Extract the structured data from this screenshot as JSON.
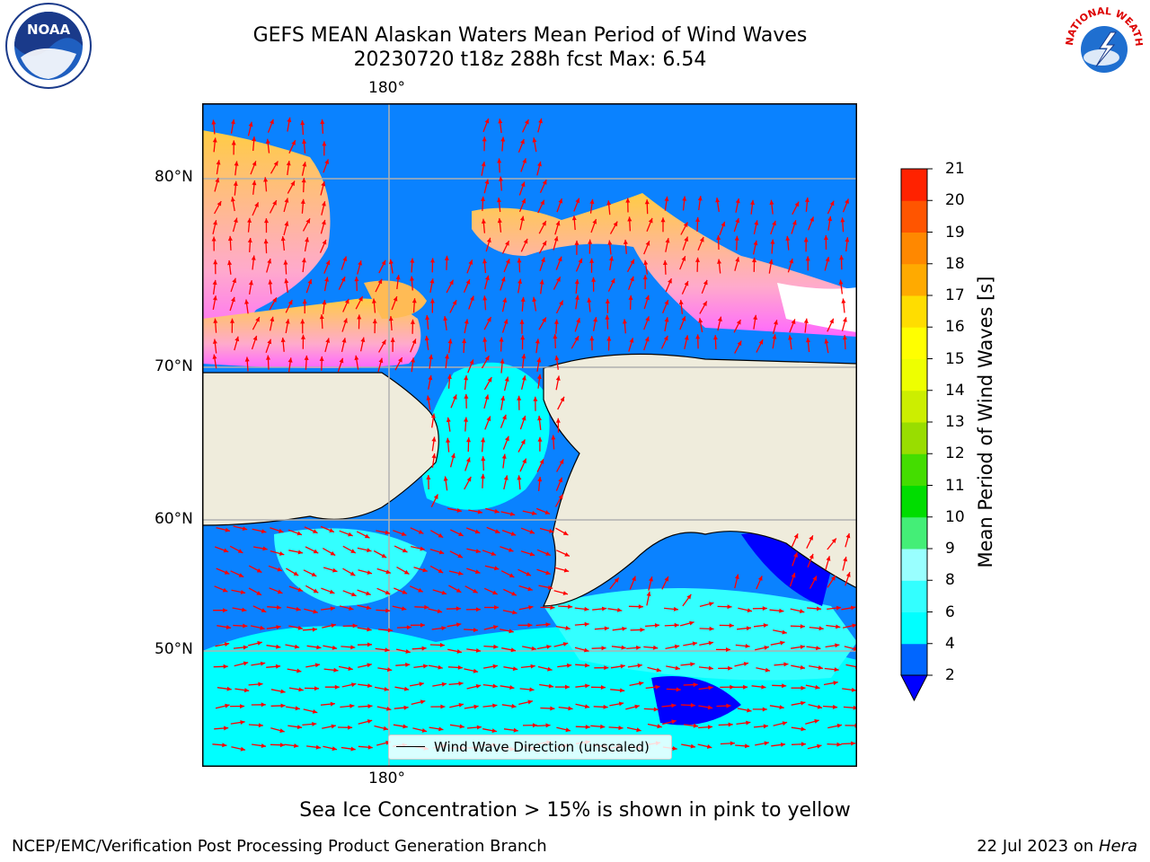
{
  "title": {
    "line1": "GEFS MEAN Alaskan Waters Mean Period of Wind Waves",
    "line2": "20230720 t18z 288h fcst   Max: 6.54"
  },
  "logos": {
    "left": {
      "text": "NOAA",
      "icon": "noaa-logo-icon"
    },
    "right": {
      "text": "NATIONAL WEATHER SERVICE",
      "icon": "nws-logo-icon"
    }
  },
  "map": {
    "top_lon_label": "180°",
    "bottom_lon_label": "180°",
    "lat_labels": [
      "80°N",
      "70°N",
      "60°N",
      "50°N"
    ],
    "land_color": "#efecdc",
    "arrow_color": "#ff0000",
    "legend_label": "Wind Wave Direction (unscaled)"
  },
  "colorbar": {
    "label": "Mean Period of Wind Waves [s]",
    "ticks": [
      "2",
      "4",
      "6",
      "8",
      "9",
      "10",
      "11",
      "12",
      "13",
      "14",
      "15",
      "16",
      "17",
      "18",
      "19",
      "20",
      "21"
    ],
    "colors": [
      "#0066ff",
      "#00ffff",
      "#33ffff",
      "#99ffff",
      "#44ee77",
      "#00dd00",
      "#44dd00",
      "#99dd00",
      "#ccee00",
      "#eeff00",
      "#ffff00",
      "#ffdd00",
      "#ffaa00",
      "#ff8800",
      "#ff5500",
      "#ff2200",
      "#ff0000"
    ],
    "under_color": "#0000ff"
  },
  "caption": "Sea Ice Concentration > 15% is shown in pink to yellow",
  "footer": {
    "left": "NCEP/EMC/Verification Post Processing Product Generation Branch",
    "right_date": "22 Jul 2023 on ",
    "right_machine": "Hera"
  }
}
